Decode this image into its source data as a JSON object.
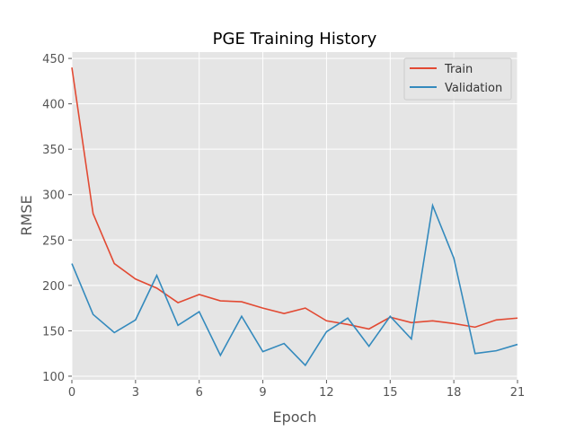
{
  "chart_data": {
    "type": "line",
    "title": "PGE Training History",
    "xlabel": "Epoch",
    "ylabel": "RMSE",
    "xlim": [
      0,
      21
    ],
    "ylim": [
      96,
      457
    ],
    "xticks": [
      0,
      3,
      6,
      9,
      12,
      15,
      18,
      21
    ],
    "yticks": [
      100,
      150,
      200,
      250,
      300,
      350,
      400,
      450
    ],
    "grid": true,
    "legend_position": "upper right",
    "x": [
      0,
      1,
      2,
      3,
      4,
      5,
      6,
      7,
      8,
      9,
      10,
      11,
      12,
      13,
      14,
      15,
      16,
      17,
      18,
      19,
      20,
      21
    ],
    "series": [
      {
        "name": "Train",
        "color": "#E24A33",
        "values": [
          440,
          279,
          224,
          207,
          197,
          181,
          190,
          183,
          182,
          175,
          169,
          175,
          161,
          157,
          152,
          165,
          159,
          161,
          158,
          154,
          162,
          164
        ]
      },
      {
        "name": "Validation",
        "color": "#348ABD",
        "values": [
          224,
          168,
          148,
          162,
          211,
          156,
          171,
          123,
          166,
          127,
          136,
          112,
          149,
          164,
          133,
          166,
          141,
          288,
          230,
          125,
          128,
          135
        ]
      }
    ]
  }
}
